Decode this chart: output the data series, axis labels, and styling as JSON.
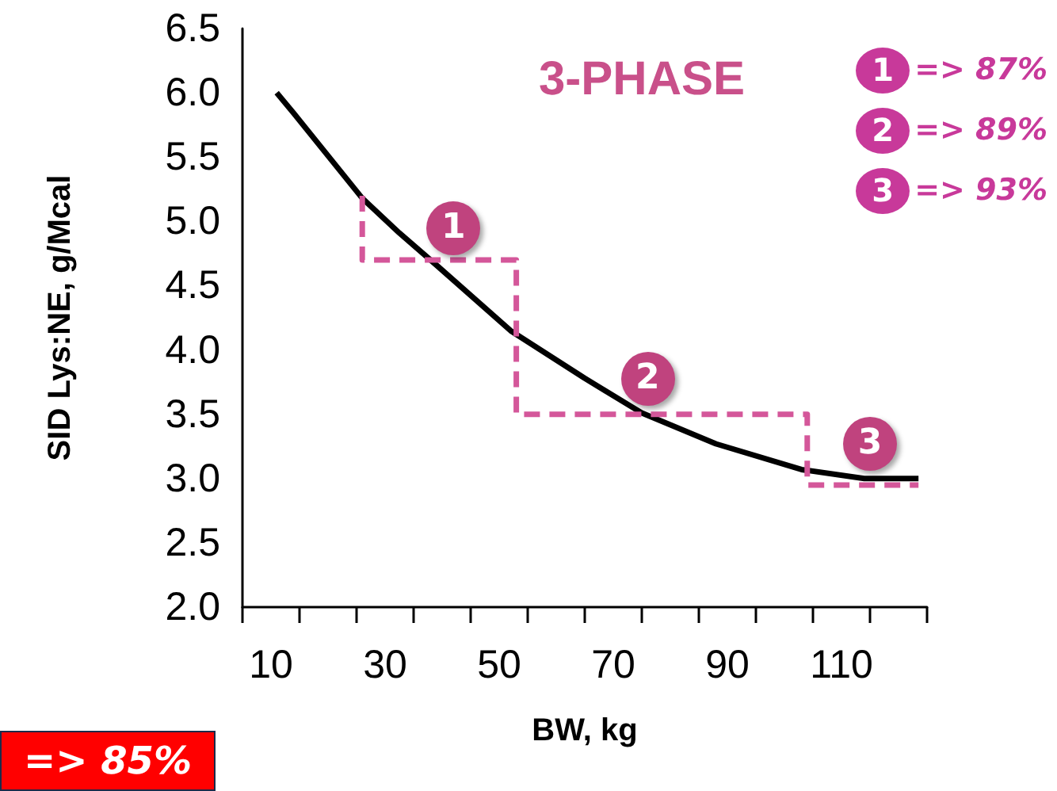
{
  "chart_data": {
    "type": "line",
    "title": "3-PHASE",
    "xlabel": "BW, kg",
    "ylabel": "SID Lys:NE, g/Mcal",
    "series": [
      {
        "color": "#000000",
        "x": [
          11,
          14,
          26,
          32.5,
          39,
          52,
          65,
          75,
          88,
          103,
          114,
          123.5
        ],
        "values": [
          6.0,
          5.84,
          5.18,
          4.91,
          4.66,
          4.15,
          3.78,
          3.51,
          3.27,
          3.07,
          3.0,
          3.0
        ]
      },
      {
        "color": "#d4579a",
        "line_style": "dashed",
        "x": [
          26,
          26,
          53,
          53,
          104,
          104,
          123.5
        ],
        "values": [
          5.2,
          4.7,
          4.7,
          3.5,
          3.5,
          2.95,
          2.95
        ]
      }
    ],
    "xlim": [
      5,
      125
    ],
    "xticks": [
      {
        "value": 5,
        "label": null
      },
      {
        "value": 10,
        "label": "10"
      },
      {
        "value": 15,
        "label": null
      },
      {
        "value": 25,
        "label": null
      },
      {
        "value": 30,
        "label": "30"
      },
      {
        "value": 35,
        "label": null
      },
      {
        "value": 45,
        "label": null
      },
      {
        "value": 50,
        "label": "50"
      },
      {
        "value": 55,
        "label": null
      },
      {
        "value": 65,
        "label": null
      },
      {
        "value": 70,
        "label": "70"
      },
      {
        "value": 75,
        "label": null
      },
      {
        "value": 85,
        "label": null
      },
      {
        "value": 90,
        "label": "90"
      },
      {
        "value": 95,
        "label": null
      },
      {
        "value": 105,
        "label": null
      },
      {
        "value": 110,
        "label": "110"
      },
      {
        "value": 115,
        "label": null
      },
      {
        "value": 125,
        "label": null
      }
    ],
    "ylim": [
      2,
      6.5
    ],
    "yticks": [
      {
        "value": 2,
        "label": "2.0"
      },
      {
        "value": 2.5,
        "label": "2.5"
      },
      {
        "value": 3,
        "label": "3.0"
      },
      {
        "value": 3.5,
        "label": "3.5"
      },
      {
        "value": 4,
        "label": "4.0"
      },
      {
        "value": 4.5,
        "label": "4.5"
      },
      {
        "value": 5,
        "label": "5.0"
      },
      {
        "value": 5.5,
        "label": "5.5"
      },
      {
        "value": 6,
        "label": "6.0"
      },
      {
        "value": 6.5,
        "label": "6.5"
      }
    ],
    "grid": false,
    "marker": "none",
    "annotations": [
      {
        "text": "1",
        "x": 42,
        "y": 4.95
      },
      {
        "text": "2",
        "x": 76,
        "y": 3.78
      },
      {
        "text": "3",
        "x": 115,
        "y": 3.27
      },
      "1",
      "=> 87%",
      "2",
      "=> 89%",
      "3",
      "=> 93%",
      "=> 85%"
    ]
  }
}
